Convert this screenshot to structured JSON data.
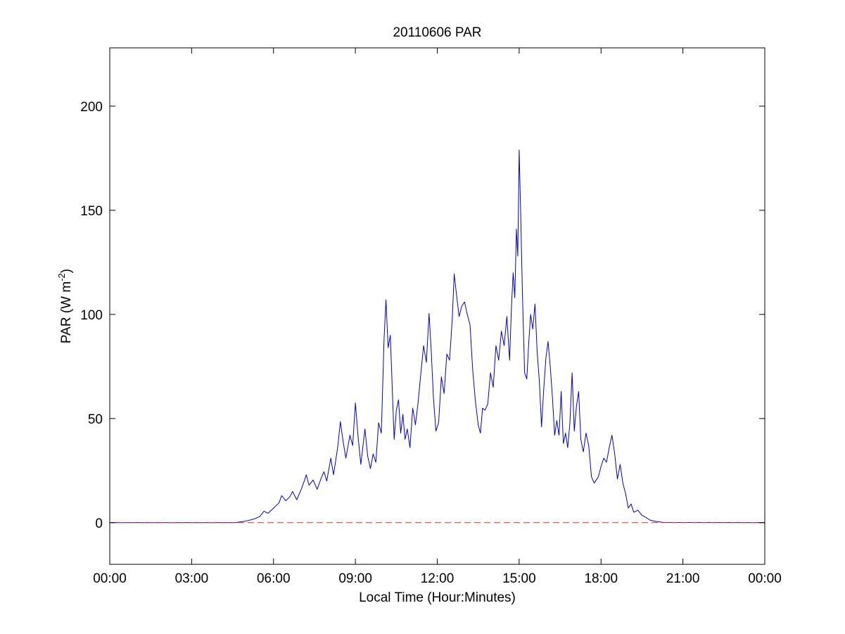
{
  "chart_data": {
    "type": "line",
    "title": "20110606 PAR",
    "xlabel": "Local Time (Hour:Minutes)",
    "ylabel": {
      "prefix": "PAR (W m",
      "superscript": "-2",
      "suffix": ")"
    },
    "xlim": [
      0,
      24
    ],
    "ylim": [
      -20,
      228
    ],
    "xticks": [
      0,
      3,
      6,
      9,
      12,
      15,
      18,
      21,
      24
    ],
    "xtick_labels": [
      "00:00",
      "03:00",
      "06:00",
      "09:00",
      "12:00",
      "15:00",
      "18:00",
      "21:00",
      "00:00"
    ],
    "yticks": [
      0,
      50,
      100,
      150,
      200
    ],
    "ytick_labels": [
      "0",
      "50",
      "100",
      "150",
      "200"
    ],
    "grid": false,
    "legend": false,
    "series": [
      {
        "color": "#0000cc",
        "style": "solid",
        "points": [
          [
            0,
            0
          ],
          [
            4.6,
            0
          ],
          [
            4.75,
            0.3
          ],
          [
            5.0,
            0.8
          ],
          [
            5.3,
            1.8
          ],
          [
            5.5,
            3
          ],
          [
            5.65,
            5.5
          ],
          [
            5.8,
            4.5
          ],
          [
            6.0,
            7
          ],
          [
            6.2,
            9.5
          ],
          [
            6.3,
            13
          ],
          [
            6.45,
            10.5
          ],
          [
            6.6,
            12.5
          ],
          [
            6.7,
            15
          ],
          [
            6.85,
            11
          ],
          [
            7.0,
            15.5
          ],
          [
            7.1,
            19
          ],
          [
            7.2,
            23
          ],
          [
            7.3,
            18
          ],
          [
            7.45,
            20.5
          ],
          [
            7.6,
            16
          ],
          [
            7.75,
            21.5
          ],
          [
            7.85,
            24.5
          ],
          [
            7.95,
            20
          ],
          [
            8.1,
            31
          ],
          [
            8.2,
            23
          ],
          [
            8.35,
            36
          ],
          [
            8.45,
            48.5
          ],
          [
            8.55,
            39
          ],
          [
            8.65,
            31
          ],
          [
            8.8,
            42
          ],
          [
            8.9,
            37
          ],
          [
            9.0,
            57.5
          ],
          [
            9.1,
            41
          ],
          [
            9.2,
            28
          ],
          [
            9.35,
            45
          ],
          [
            9.45,
            32
          ],
          [
            9.55,
            26
          ],
          [
            9.65,
            33
          ],
          [
            9.75,
            29
          ],
          [
            9.85,
            48
          ],
          [
            9.95,
            43
          ],
          [
            10.05,
            88
          ],
          [
            10.12,
            107
          ],
          [
            10.2,
            84
          ],
          [
            10.28,
            90
          ],
          [
            10.36,
            61
          ],
          [
            10.42,
            40
          ],
          [
            10.5,
            54
          ],
          [
            10.58,
            59
          ],
          [
            10.66,
            43
          ],
          [
            10.74,
            52
          ],
          [
            10.82,
            40
          ],
          [
            10.9,
            45
          ],
          [
            11.0,
            36
          ],
          [
            11.1,
            55
          ],
          [
            11.2,
            47
          ],
          [
            11.3,
            58
          ],
          [
            11.4,
            72
          ],
          [
            11.5,
            85
          ],
          [
            11.6,
            77
          ],
          [
            11.7,
            100.5
          ],
          [
            11.78,
            82
          ],
          [
            11.86,
            60
          ],
          [
            11.95,
            44
          ],
          [
            12.05,
            48
          ],
          [
            12.15,
            70
          ],
          [
            12.25,
            62
          ],
          [
            12.35,
            81
          ],
          [
            12.45,
            78
          ],
          [
            12.55,
            98
          ],
          [
            12.62,
            119.5
          ],
          [
            12.7,
            110
          ],
          [
            12.8,
            99
          ],
          [
            12.9,
            104
          ],
          [
            13.0,
            106
          ],
          [
            13.1,
            100
          ],
          [
            13.2,
            95
          ],
          [
            13.3,
            73
          ],
          [
            13.4,
            58
          ],
          [
            13.5,
            47
          ],
          [
            13.58,
            43
          ],
          [
            13.66,
            55
          ],
          [
            13.75,
            54
          ],
          [
            13.85,
            57
          ],
          [
            13.95,
            72
          ],
          [
            14.05,
            65
          ],
          [
            14.15,
            85
          ],
          [
            14.25,
            78
          ],
          [
            14.35,
            92
          ],
          [
            14.45,
            85
          ],
          [
            14.55,
            99
          ],
          [
            14.65,
            78
          ],
          [
            14.72,
            104
          ],
          [
            14.78,
            120
          ],
          [
            14.84,
            108
          ],
          [
            14.9,
            141
          ],
          [
            14.95,
            128
          ],
          [
            15.0,
            179
          ],
          [
            15.05,
            152
          ],
          [
            15.12,
            110
          ],
          [
            15.2,
            72
          ],
          [
            15.28,
            69
          ],
          [
            15.35,
            86
          ],
          [
            15.42,
            100
          ],
          [
            15.5,
            93
          ],
          [
            15.58,
            105
          ],
          [
            15.66,
            82
          ],
          [
            15.74,
            68
          ],
          [
            15.82,
            46
          ],
          [
            15.9,
            64
          ],
          [
            15.98,
            79
          ],
          [
            16.06,
            87
          ],
          [
            16.14,
            75
          ],
          [
            16.22,
            60
          ],
          [
            16.3,
            42
          ],
          [
            16.38,
            49
          ],
          [
            16.46,
            42
          ],
          [
            16.54,
            63
          ],
          [
            16.62,
            38
          ],
          [
            16.7,
            43
          ],
          [
            16.78,
            36
          ],
          [
            16.86,
            48
          ],
          [
            16.94,
            72
          ],
          [
            17.02,
            44
          ],
          [
            17.1,
            56
          ],
          [
            17.18,
            63
          ],
          [
            17.26,
            40
          ],
          [
            17.35,
            34
          ],
          [
            17.45,
            43
          ],
          [
            17.55,
            37
          ],
          [
            17.65,
            22
          ],
          [
            17.75,
            19
          ],
          [
            17.9,
            22
          ],
          [
            18.0,
            27
          ],
          [
            18.1,
            31
          ],
          [
            18.2,
            29
          ],
          [
            18.3,
            36
          ],
          [
            18.4,
            42
          ],
          [
            18.5,
            33
          ],
          [
            18.6,
            21
          ],
          [
            18.7,
            28
          ],
          [
            18.8,
            19
          ],
          [
            18.9,
            14
          ],
          [
            19.0,
            7
          ],
          [
            19.1,
            9
          ],
          [
            19.2,
            5
          ],
          [
            19.35,
            6
          ],
          [
            19.5,
            3.5
          ],
          [
            19.65,
            2.5
          ],
          [
            19.8,
            1.2
          ],
          [
            20.0,
            0.6
          ],
          [
            20.3,
            0.1
          ],
          [
            24,
            0
          ]
        ]
      },
      {
        "color": "#e03030",
        "style": "dashed",
        "points": [
          [
            0,
            0
          ],
          [
            24,
            0
          ]
        ]
      }
    ]
  }
}
